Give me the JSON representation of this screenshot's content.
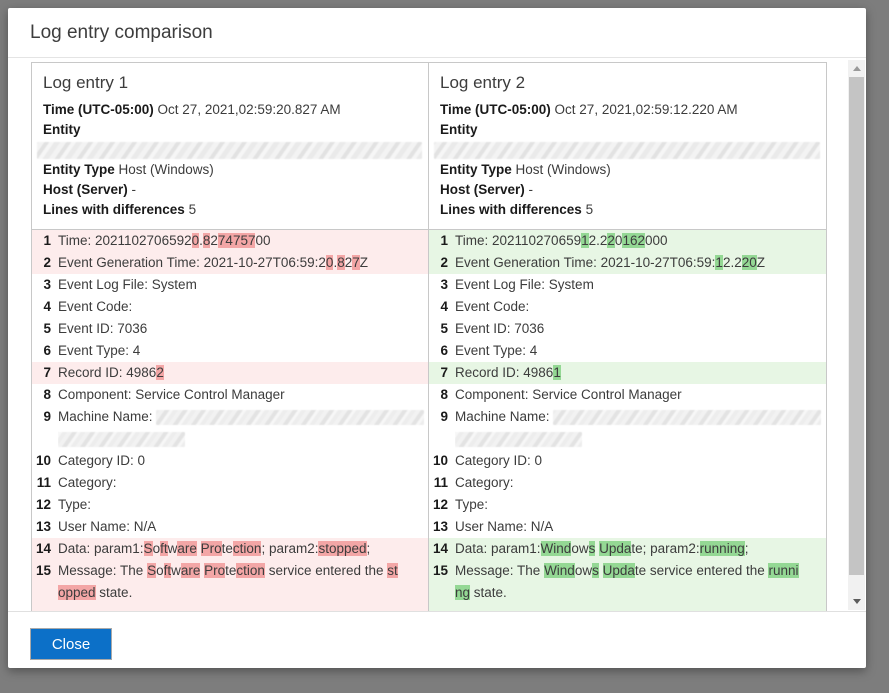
{
  "dialog": {
    "title": "Log entry comparison",
    "close_label": "Close"
  },
  "colors": {
    "backdrop": "#7d7d7d",
    "accent_blue": "#0c70c8",
    "pink_row_bg": "#fdecec",
    "pink_highlight": "#f3a6a6",
    "green_row_bg": "#e7f6e4",
    "green_highlight": "#94d894",
    "panel_border": "#c8c8c8"
  },
  "panels": [
    {
      "header": {
        "title": "Log entry 1",
        "time_label": "Time (UTC-05:00)",
        "time_value": "Oct 27, 2021,02:59:20.827 AM",
        "entity_label": "Entity",
        "entity_type_label": "Entity Type",
        "entity_type_value": "Host (Windows)",
        "host_label": "Host (Server)",
        "host_value": "-",
        "diff_label": "Lines with differences",
        "diff_value": "5"
      },
      "rows": [
        {
          "n": "1",
          "hl": true,
          "parts": [
            [
              "Time: 2021102706592",
              0
            ],
            [
              "0",
              1
            ],
            [
              ".",
              0
            ],
            [
              "8",
              1
            ],
            [
              "2",
              0
            ],
            [
              "74757",
              1
            ],
            [
              "00",
              0
            ]
          ]
        },
        {
          "n": "2",
          "hl": true,
          "parts": [
            [
              "Event Generation Time: 2021-10-27T06:59:2",
              0
            ],
            [
              "0",
              1
            ],
            [
              ".",
              0
            ],
            [
              "8",
              1
            ],
            [
              "2",
              0
            ],
            [
              "7",
              1
            ],
            [
              "Z",
              0
            ]
          ]
        },
        {
          "n": "3",
          "hl": false,
          "parts": [
            [
              "Event Log File: System",
              0
            ]
          ]
        },
        {
          "n": "4",
          "hl": false,
          "parts": [
            [
              "Event Code:",
              0
            ]
          ]
        },
        {
          "n": "5",
          "hl": false,
          "parts": [
            [
              "Event ID: 7036",
              0
            ]
          ]
        },
        {
          "n": "6",
          "hl": false,
          "parts": [
            [
              "Event Type: 4",
              0
            ]
          ]
        },
        {
          "n": "7",
          "hl": true,
          "parts": [
            [
              "Record ID: 4986",
              0
            ],
            [
              "2",
              1
            ]
          ]
        },
        {
          "n": "8",
          "hl": false,
          "parts": [
            [
              "Component: Service Control Manager",
              0
            ]
          ]
        },
        {
          "n": "9",
          "hl": false,
          "parts": [
            [
              "Machine Name: ",
              0
            ],
            [
              "",
              3,
              268
            ],
            [
              "",
              2
            ],
            [
              "",
              3,
              127
            ]
          ]
        },
        {
          "n": "10",
          "hl": false,
          "parts": [
            [
              "Category ID: 0",
              0
            ]
          ]
        },
        {
          "n": "11",
          "hl": false,
          "parts": [
            [
              "Category:",
              0
            ]
          ]
        },
        {
          "n": "12",
          "hl": false,
          "parts": [
            [
              "Type:",
              0
            ]
          ]
        },
        {
          "n": "13",
          "hl": false,
          "parts": [
            [
              "User Name: N/A",
              0
            ]
          ]
        },
        {
          "n": "14",
          "hl": true,
          "parts": [
            [
              "Data: param1:",
              0
            ],
            [
              "S",
              1
            ],
            [
              "o",
              0
            ],
            [
              "ft",
              1
            ],
            [
              "w",
              0
            ],
            [
              "are",
              1
            ],
            [
              " ",
              0
            ],
            [
              "Pro",
              1
            ],
            [
              "te",
              0
            ],
            [
              "ction",
              1
            ],
            [
              "; param2:",
              0
            ],
            [
              "stopped",
              1
            ],
            [
              ";",
              0
            ]
          ]
        },
        {
          "n": "15",
          "hl": true,
          "parts": [
            [
              "Message: The ",
              0
            ],
            [
              "S",
              1
            ],
            [
              "o",
              0
            ],
            [
              "ft",
              1
            ],
            [
              "w",
              0
            ],
            [
              "are",
              1
            ],
            [
              " ",
              0
            ],
            [
              "Pro",
              1
            ],
            [
              "te",
              0
            ],
            [
              "ction",
              1
            ],
            [
              " service entered the ",
              0
            ],
            [
              "st",
              1
            ],
            [
              "",
              2
            ],
            [
              "opped",
              1
            ],
            [
              " state.",
              0
            ]
          ]
        }
      ]
    },
    {
      "header": {
        "title": "Log entry 2",
        "time_label": "Time (UTC-05:00)",
        "time_value": "Oct 27, 2021,02:59:12.220 AM",
        "entity_label": "Entity",
        "entity_type_label": "Entity Type",
        "entity_type_value": "Host (Windows)",
        "host_label": "Host (Server)",
        "host_value": "-",
        "diff_label": "Lines with differences",
        "diff_value": "5"
      },
      "rows": [
        {
          "n": "1",
          "hl": true,
          "parts": [
            [
              "Time: 202110270659",
              0
            ],
            [
              "1",
              1
            ],
            [
              "2.2",
              0
            ],
            [
              "2",
              1
            ],
            [
              "0",
              0
            ],
            [
              "162",
              1
            ],
            [
              "000",
              0
            ]
          ]
        },
        {
          "n": "2",
          "hl": true,
          "parts": [
            [
              "Event Generation Time: 2021-10-27T06:59:",
              0
            ],
            [
              "1",
              1
            ],
            [
              "2.2",
              0
            ],
            [
              "20",
              1
            ],
            [
              "Z",
              0
            ]
          ]
        },
        {
          "n": "3",
          "hl": false,
          "parts": [
            [
              "Event Log File: System",
              0
            ]
          ]
        },
        {
          "n": "4",
          "hl": false,
          "parts": [
            [
              "Event Code:",
              0
            ]
          ]
        },
        {
          "n": "5",
          "hl": false,
          "parts": [
            [
              "Event ID: 7036",
              0
            ]
          ]
        },
        {
          "n": "6",
          "hl": false,
          "parts": [
            [
              "Event Type: 4",
              0
            ]
          ]
        },
        {
          "n": "7",
          "hl": true,
          "parts": [
            [
              "Record ID: 4986",
              0
            ],
            [
              "1",
              1
            ]
          ]
        },
        {
          "n": "8",
          "hl": false,
          "parts": [
            [
              "Component: Service Control Manager",
              0
            ]
          ]
        },
        {
          "n": "9",
          "hl": false,
          "parts": [
            [
              "Machine Name: ",
              0
            ],
            [
              "",
              3,
              268
            ],
            [
              "",
              2
            ],
            [
              "",
              3,
              127
            ]
          ]
        },
        {
          "n": "10",
          "hl": false,
          "parts": [
            [
              "Category ID: 0",
              0
            ]
          ]
        },
        {
          "n": "11",
          "hl": false,
          "parts": [
            [
              "Category:",
              0
            ]
          ]
        },
        {
          "n": "12",
          "hl": false,
          "parts": [
            [
              "Type:",
              0
            ]
          ]
        },
        {
          "n": "13",
          "hl": false,
          "parts": [
            [
              "User Name: N/A",
              0
            ]
          ]
        },
        {
          "n": "14",
          "hl": true,
          "parts": [
            [
              "Data: param1:",
              0
            ],
            [
              "Wind",
              1
            ],
            [
              "ow",
              0
            ],
            [
              "s",
              1
            ],
            [
              " ",
              0
            ],
            [
              "Upda",
              1
            ],
            [
              "te",
              0
            ],
            [
              "; param2:",
              0
            ],
            [
              "running",
              1
            ],
            [
              ";",
              0
            ]
          ]
        },
        {
          "n": "15",
          "hl": true,
          "parts": [
            [
              "Message: The ",
              0
            ],
            [
              "Wind",
              1
            ],
            [
              "ow",
              0
            ],
            [
              "s",
              1
            ],
            [
              " ",
              0
            ],
            [
              "Upda",
              1
            ],
            [
              "te",
              0
            ],
            [
              " service entered the ",
              0
            ],
            [
              "runni",
              1
            ],
            [
              "",
              2
            ],
            [
              "ng",
              1
            ],
            [
              " state.",
              0
            ]
          ]
        }
      ]
    }
  ]
}
